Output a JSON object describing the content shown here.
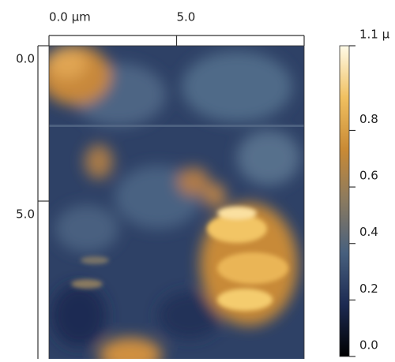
{
  "chart_data": {
    "type": "image",
    "xlim": [
      0,
      10
    ],
    "ylim": [
      0,
      10
    ],
    "xticks": [
      {
        "value": 0,
        "label": "0.0 µm"
      },
      {
        "value": 5,
        "label": "5.0"
      }
    ],
    "yticks": [
      {
        "value": 0,
        "label": "0.0"
      },
      {
        "value": 5,
        "label": "5.0"
      }
    ],
    "zlim": [
      0,
      1.1
    ],
    "zticks": [
      {
        "value": 0,
        "label": "0.0"
      },
      0.2,
      0.4,
      0.6,
      0.8,
      {
        "value": 1.1,
        "label": "1.1 µ"
      }
    ],
    "colormap": [
      "#000000",
      "#1c2a52",
      "#47607e",
      "#8a7a60",
      "#c98a35",
      "#f0c060",
      "#fffbe8"
    ]
  }
}
